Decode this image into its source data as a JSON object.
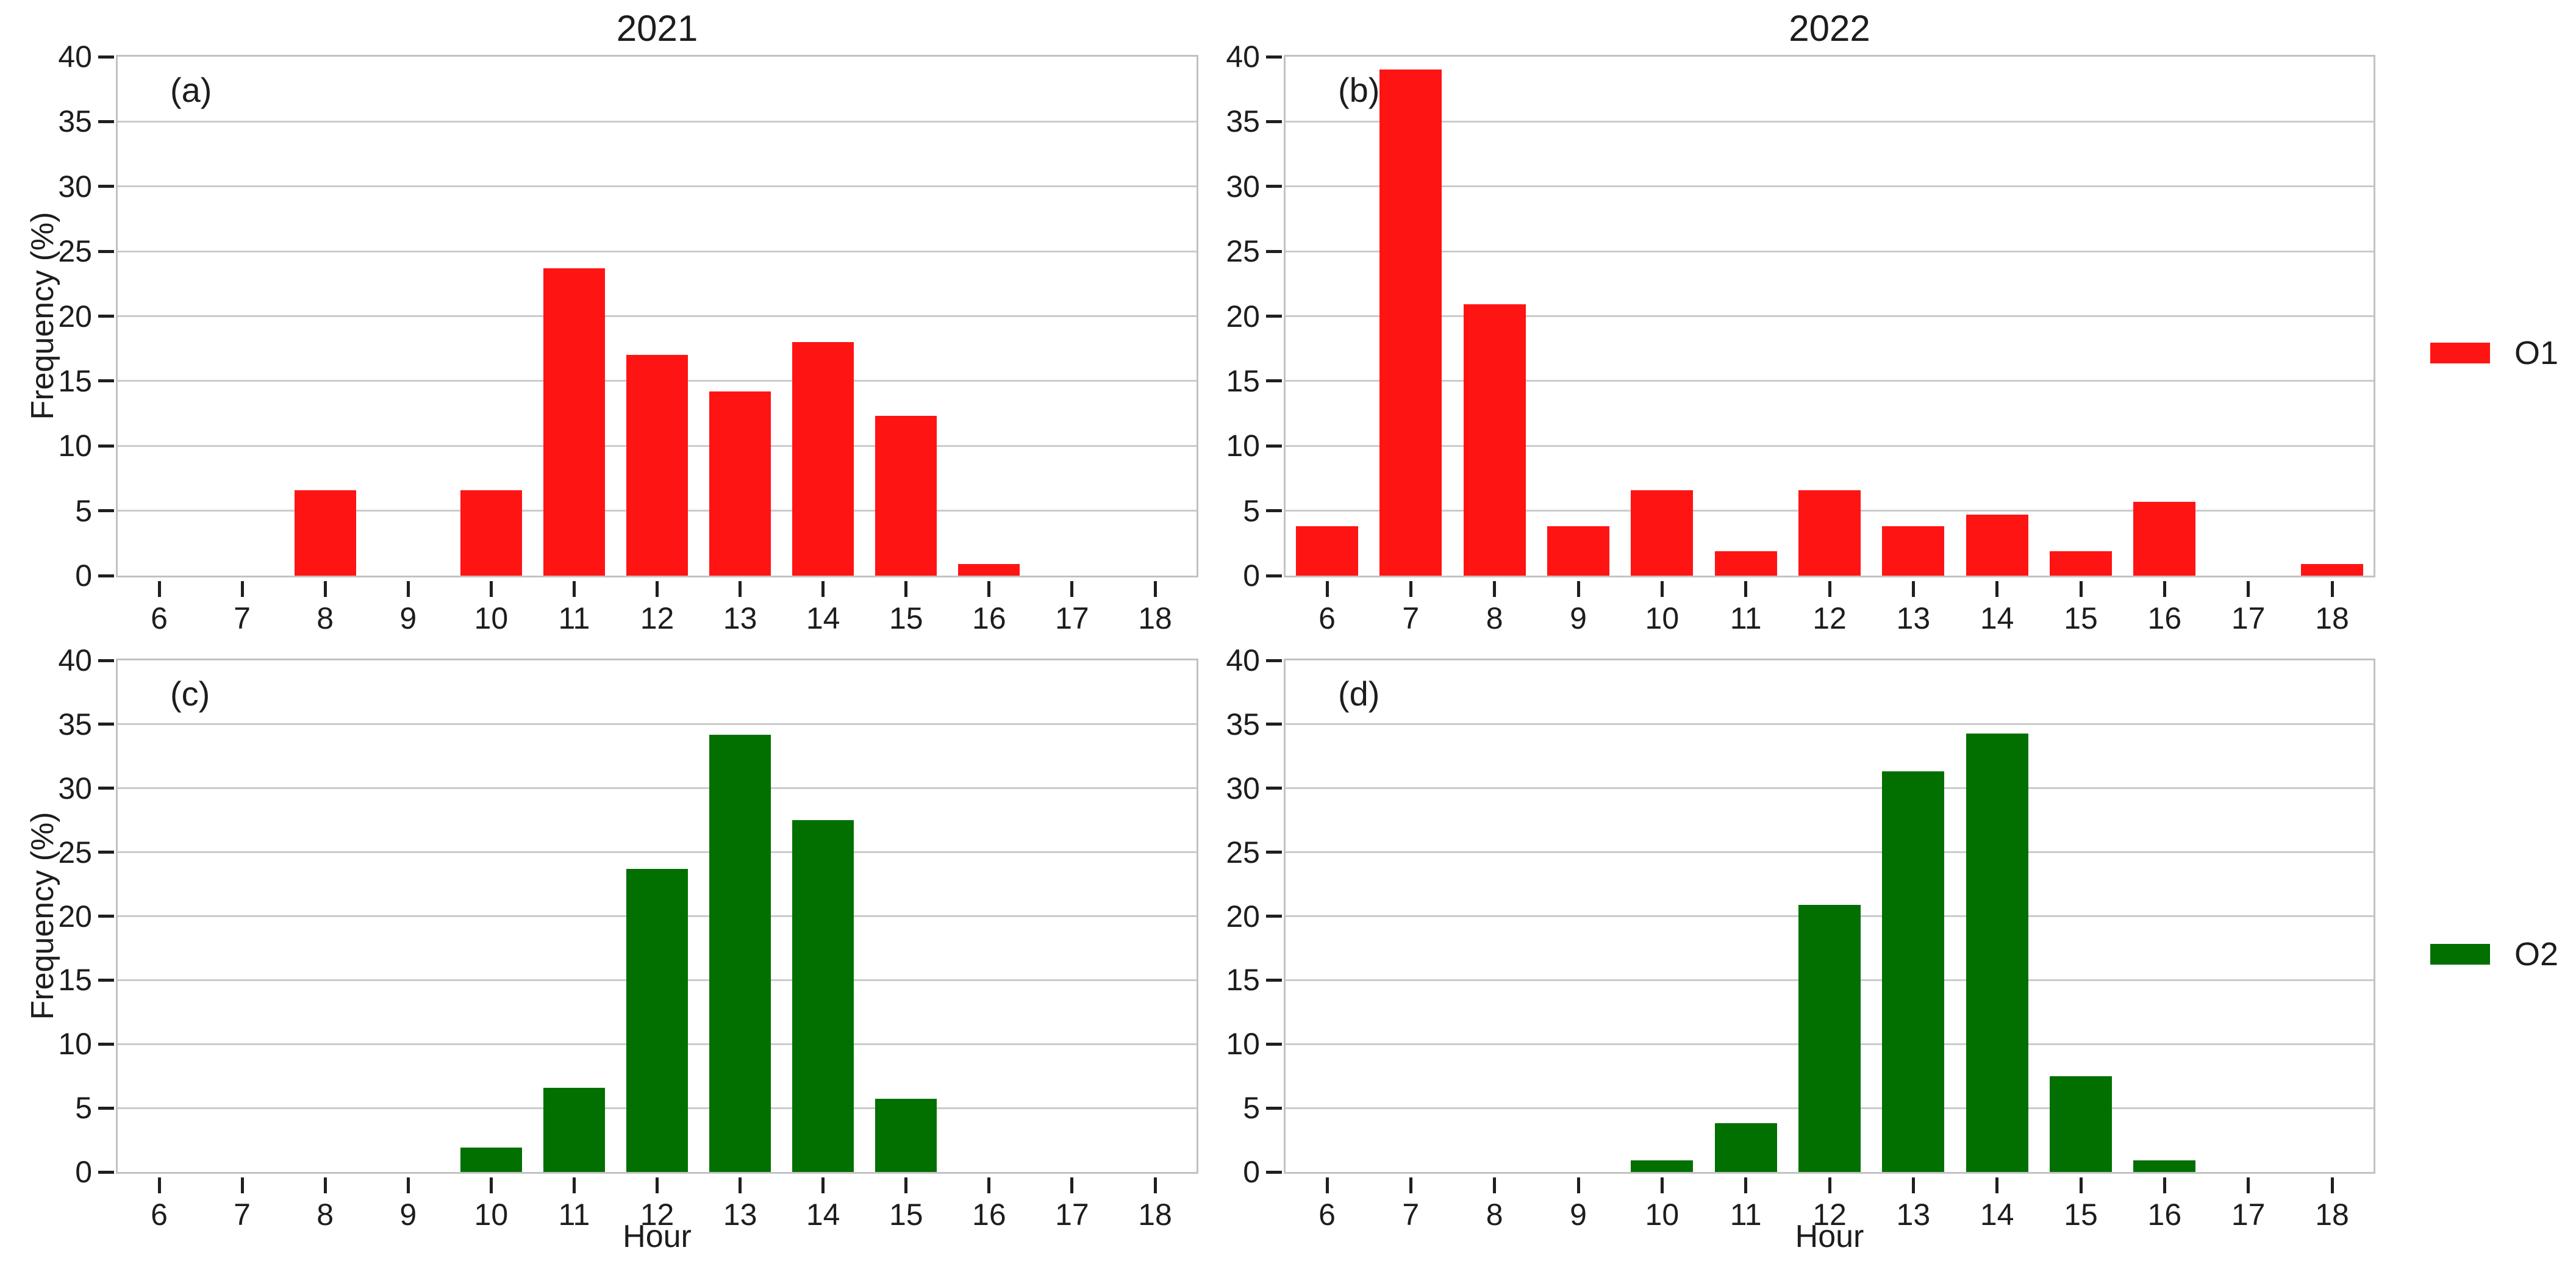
{
  "figure": {
    "column_titles": [
      "2021",
      "2022"
    ],
    "ylabel": "Frequency (%)",
    "xlabel": "Hour",
    "legend": [
      {
        "label": "O1",
        "color": "#ff1414"
      },
      {
        "label": "O2",
        "color": "#017001"
      }
    ],
    "colors": {
      "o1_red": "#ff1414",
      "o2_green": "#017001",
      "gridline": "#cbcbcb",
      "panel_border": "#c2c2c2",
      "tick": "#1f1f1f",
      "text": "#1d1d1d",
      "background": "#ffffff"
    }
  },
  "chart_data": [
    {
      "type": "bar",
      "panel_letter": "(a)",
      "row": 0,
      "col": 0,
      "title": "2021",
      "series": "O1",
      "color": "#ff1414",
      "x": [
        6,
        7,
        8,
        9,
        10,
        11,
        12,
        13,
        14,
        15,
        16,
        17,
        18
      ],
      "values": [
        0,
        0,
        6.6,
        0,
        6.6,
        23.7,
        17.0,
        14.2,
        18.0,
        12.3,
        0.9,
        0,
        0
      ],
      "xlabel": "",
      "ylabel": "Frequency (%)",
      "ylim": [
        0,
        40
      ],
      "yticks": [
        0,
        5,
        10,
        15,
        20,
        25,
        30,
        35,
        40
      ],
      "grid": true,
      "legend_position": "right"
    },
    {
      "type": "bar",
      "panel_letter": "(b)",
      "row": 0,
      "col": 1,
      "title": "2022",
      "series": "O1",
      "color": "#ff1414",
      "x": [
        6,
        7,
        8,
        9,
        10,
        11,
        12,
        13,
        14,
        15,
        16,
        17,
        18
      ],
      "values": [
        3.8,
        39.0,
        20.9,
        3.8,
        6.6,
        1.9,
        6.6,
        3.8,
        4.7,
        1.9,
        5.7,
        0,
        0.9
      ],
      "xlabel": "",
      "ylabel": "",
      "ylim": [
        0,
        40
      ],
      "yticks": [
        0,
        5,
        10,
        15,
        20,
        25,
        30,
        35,
        40
      ],
      "grid": true,
      "legend_position": "right"
    },
    {
      "type": "bar",
      "panel_letter": "(c)",
      "row": 1,
      "col": 0,
      "title": "",
      "series": "O2",
      "color": "#017001",
      "x": [
        6,
        7,
        8,
        9,
        10,
        11,
        12,
        13,
        14,
        15,
        16,
        17,
        18
      ],
      "values": [
        0,
        0,
        0,
        0,
        1.9,
        6.6,
        23.7,
        34.2,
        27.5,
        5.7,
        0,
        0,
        0
      ],
      "xlabel": "Hour",
      "ylabel": "Frequency (%)",
      "ylim": [
        0,
        40
      ],
      "yticks": [
        0,
        5,
        10,
        15,
        20,
        25,
        30,
        35,
        40
      ],
      "grid": true,
      "legend_position": "right"
    },
    {
      "type": "bar",
      "panel_letter": "(d)",
      "row": 1,
      "col": 1,
      "title": "",
      "series": "O2",
      "color": "#017001",
      "x": [
        6,
        7,
        8,
        9,
        10,
        11,
        12,
        13,
        14,
        15,
        16,
        17,
        18
      ],
      "values": [
        0,
        0,
        0,
        0,
        0.9,
        3.8,
        20.9,
        31.3,
        34.3,
        7.5,
        0.9,
        0,
        0
      ],
      "xlabel": "Hour",
      "ylabel": "",
      "ylim": [
        0,
        40
      ],
      "yticks": [
        0,
        5,
        10,
        15,
        20,
        25,
        30,
        35,
        40
      ],
      "grid": true,
      "legend_position": "right"
    }
  ]
}
